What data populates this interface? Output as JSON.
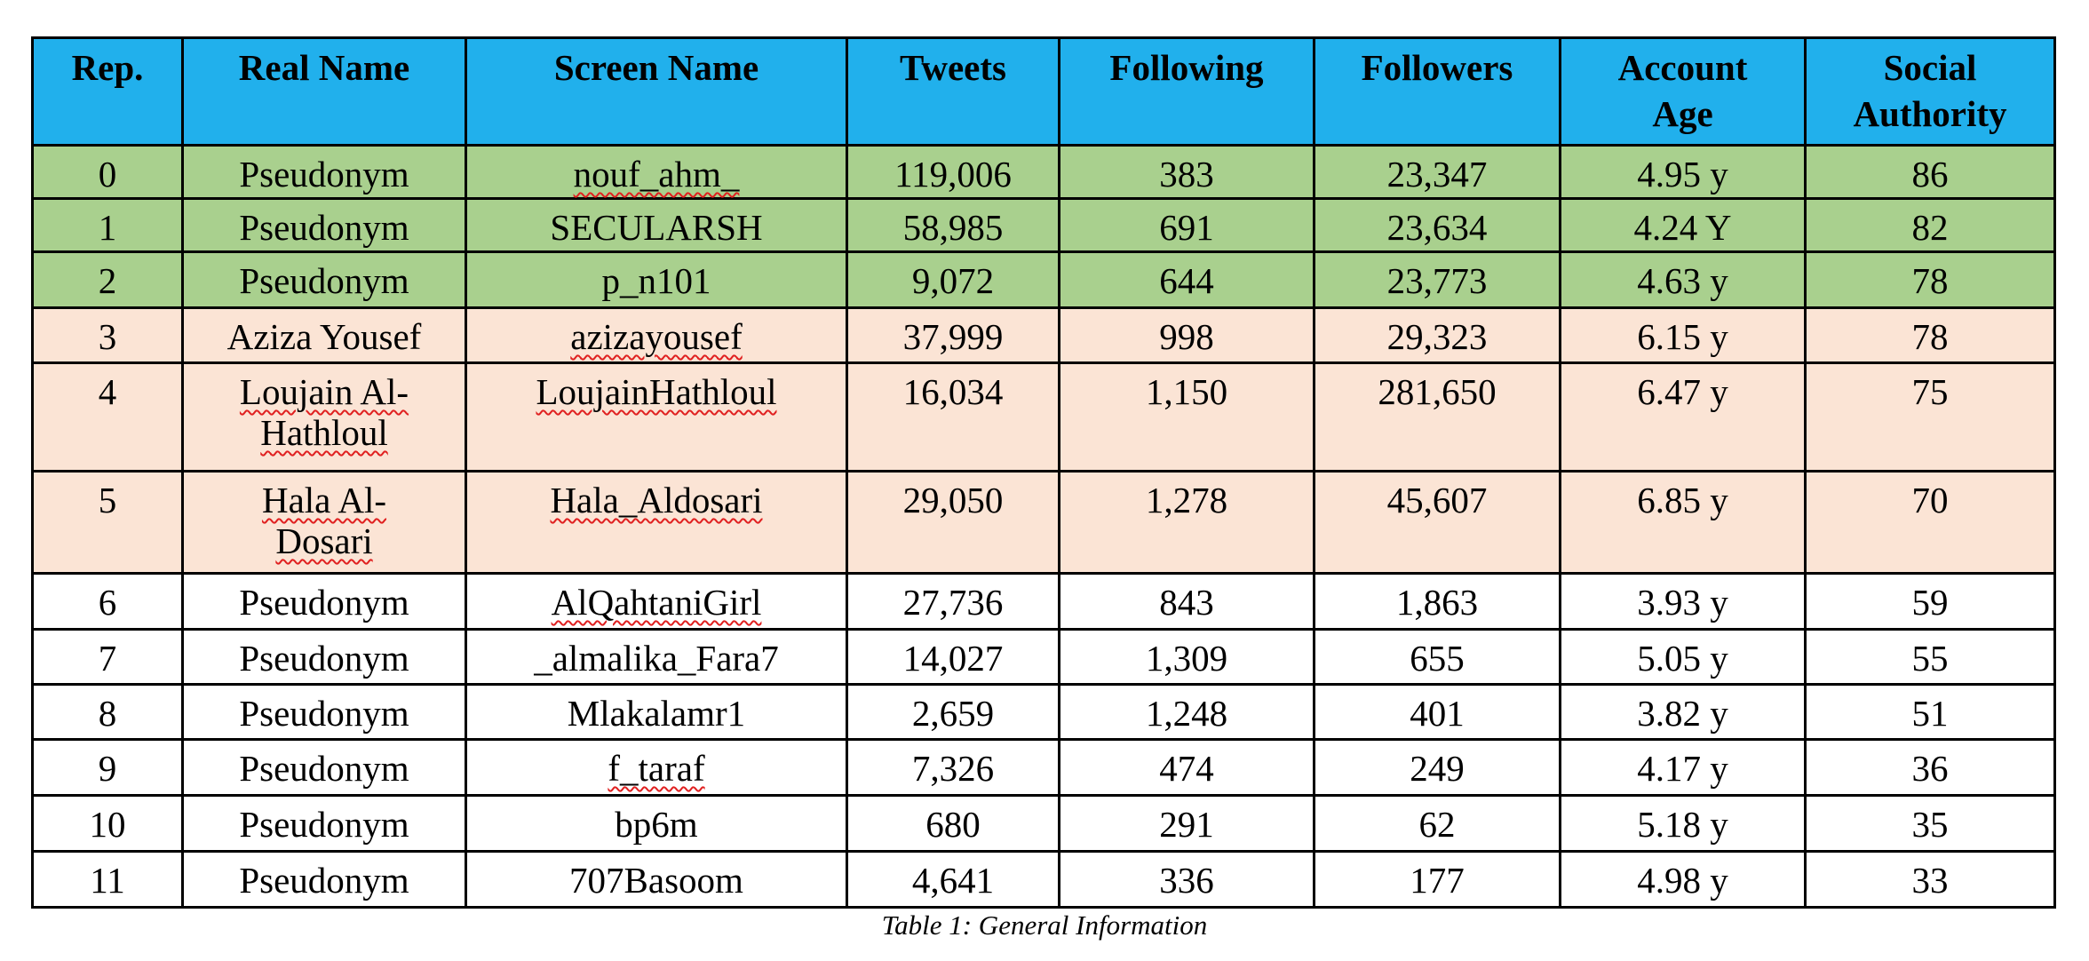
{
  "table": {
    "headers": [
      "Rep.",
      "Real Name",
      "Screen Name",
      "Tweets",
      "Following",
      "Followers",
      "Account Age",
      "Social Authority"
    ],
    "rows": [
      {
        "group": "green",
        "rep": "0",
        "real_name": "Pseudonym",
        "screen_name": "nouf_ahm_",
        "tweets": "119,006",
        "following": "383",
        "followers": "23,347",
        "account_age": "4.95 y",
        "social_authority": "86",
        "flag_real": false,
        "flag_screen": true
      },
      {
        "group": "green",
        "rep": "1",
        "real_name": "Pseudonym",
        "screen_name": "SECULARSH",
        "tweets": "58,985",
        "following": "691",
        "followers": "23,634",
        "account_age": "4.24 Y",
        "social_authority": "82",
        "flag_real": false,
        "flag_screen": false
      },
      {
        "group": "green",
        "rep": "2",
        "real_name": "Pseudonym",
        "screen_name": "p_n101",
        "tweets": "9,072",
        "following": "644",
        "followers": "23,773",
        "account_age": "4.63 y",
        "social_authority": "78",
        "flag_real": false,
        "flag_screen": false
      },
      {
        "group": "peach",
        "rep": "3",
        "real_name": "Aziza Yousef",
        "screen_name": "azizayousef",
        "tweets": "37,999",
        "following": "998",
        "followers": "29,323",
        "account_age": "6.15 y",
        "social_authority": "78",
        "flag_real": false,
        "flag_screen": true
      },
      {
        "group": "peach",
        "rep": "4",
        "real_name": "Loujain Al-Hathloul",
        "screen_name": "LoujainHathloul",
        "tweets": "16,034",
        "following": "1,150",
        "followers": "281,650",
        "account_age": "6.47 y",
        "social_authority": "75",
        "flag_real": true,
        "flag_screen": true
      },
      {
        "group": "peach",
        "rep": "5",
        "real_name": "Hala Al-Dosari",
        "screen_name": "Hala_Aldosari",
        "tweets": "29,050",
        "following": "1,278",
        "followers": "45,607",
        "account_age": "6.85 y",
        "social_authority": "70",
        "flag_real": true,
        "flag_screen": true
      },
      {
        "group": "plain",
        "rep": "6",
        "real_name": "Pseudonym",
        "screen_name": "AlQahtaniGirl",
        "tweets": "27,736",
        "following": "843",
        "followers": "1,863",
        "account_age": "3.93 y",
        "social_authority": "59",
        "flag_real": false,
        "flag_screen": true
      },
      {
        "group": "plain",
        "rep": "7",
        "real_name": "Pseudonym",
        "screen_name": "_almalika_Fara7",
        "tweets": "14,027",
        "following": "1,309",
        "followers": "655",
        "account_age": "5.05 y",
        "social_authority": "55",
        "flag_real": false,
        "flag_screen": false
      },
      {
        "group": "plain",
        "rep": "8",
        "real_name": "Pseudonym",
        "screen_name": "Mlakalamr1",
        "tweets": "2,659",
        "following": "1,248",
        "followers": "401",
        "account_age": "3.82 y",
        "social_authority": "51",
        "flag_real": false,
        "flag_screen": false
      },
      {
        "group": "plain",
        "rep": "9",
        "real_name": "Pseudonym",
        "screen_name": "f_taraf",
        "tweets": "7,326",
        "following": "474",
        "followers": "249",
        "account_age": "4.17 y",
        "social_authority": "36",
        "flag_real": false,
        "flag_screen": true
      },
      {
        "group": "plain",
        "rep": "10",
        "real_name": "Pseudonym",
        "screen_name": "bp6m",
        "tweets": "680",
        "following": "291",
        "followers": "62",
        "account_age": "5.18 y",
        "social_authority": "35",
        "flag_real": false,
        "flag_screen": false
      },
      {
        "group": "plain",
        "rep": "11",
        "real_name": "Pseudonym",
        "screen_name": "707Basoom",
        "tweets": "4,641",
        "following": "336",
        "followers": "177",
        "account_age": "4.98 y",
        "social_authority": "33",
        "flag_real": false,
        "flag_screen": false
      }
    ],
    "caption": "Table 1: General Information"
  },
  "colors": {
    "header": "#21b0ec",
    "green_rows": "#a9d08e",
    "peach_rows": "#fbe4d5",
    "spellcheck": "#e02020"
  }
}
